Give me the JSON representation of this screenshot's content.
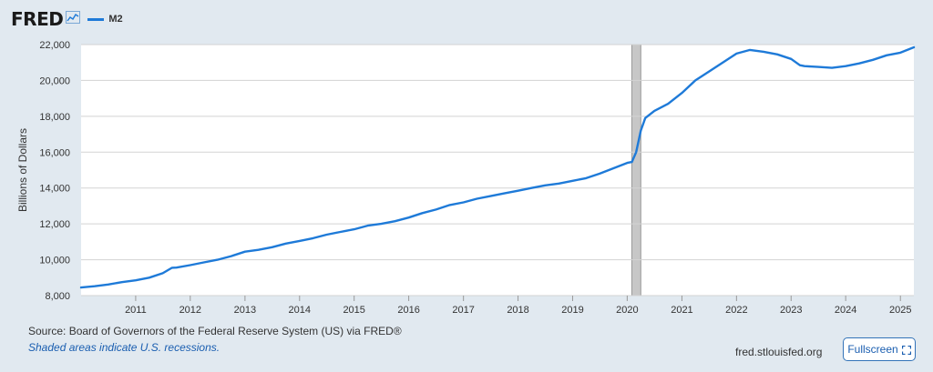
{
  "header": {
    "logo": "FRED",
    "logo_icon": "line-graph-icon",
    "legend_label": "M2"
  },
  "colors": {
    "series": "#1e7ad8",
    "recession": "#c7c7c7",
    "grid": "#d3d3d3",
    "background": "#e1e9f0",
    "plot_bg": "#ffffff"
  },
  "footer": {
    "source": "Source: Board of Governors of the Federal Reserve System (US) via FRED®",
    "note": "Shaded areas indicate U.S. recessions.",
    "site": "fred.stlouisfed.org",
    "fullscreen_label": "Fullscreen",
    "fullscreen_icon": "fullscreen-corners-icon"
  },
  "chart_data": {
    "type": "line",
    "title": "",
    "xlabel": "",
    "ylabel": "Billions of Dollars",
    "xlim": [
      "2010-01-01",
      "2025-04-01"
    ],
    "ylim": [
      8000,
      22000
    ],
    "yticks": [
      8000,
      10000,
      12000,
      14000,
      16000,
      18000,
      20000,
      22000
    ],
    "ytick_labels": [
      "8,000",
      "10,000",
      "12,000",
      "14,000",
      "16,000",
      "18,000",
      "20,000",
      "22,000"
    ],
    "xticks": [
      "2011-01-01",
      "2012-01-01",
      "2013-01-01",
      "2014-01-01",
      "2015-01-01",
      "2016-01-01",
      "2017-01-01",
      "2018-01-01",
      "2019-01-01",
      "2020-01-01",
      "2021-01-01",
      "2022-01-01",
      "2023-01-01",
      "2024-01-01",
      "2025-01-01"
    ],
    "xtick_labels": [
      "2011",
      "2012",
      "2013",
      "2014",
      "2015",
      "2016",
      "2017",
      "2018",
      "2019",
      "2020",
      "2021",
      "2022",
      "2023",
      "2024",
      "2025"
    ],
    "grid": "horizontal",
    "legend_position": "top-left",
    "recessions": [
      {
        "start": "2020-02-01",
        "end": "2020-04-01"
      }
    ],
    "series": [
      {
        "name": "M2",
        "points": [
          [
            "2010-01-01",
            8450
          ],
          [
            "2010-04-01",
            8520
          ],
          [
            "2010-07-01",
            8620
          ],
          [
            "2010-10-01",
            8750
          ],
          [
            "2011-01-01",
            8850
          ],
          [
            "2011-04-01",
            9000
          ],
          [
            "2011-07-01",
            9250
          ],
          [
            "2011-09-01",
            9550
          ],
          [
            "2011-10-01",
            9560
          ],
          [
            "2012-01-01",
            9700
          ],
          [
            "2012-04-01",
            9850
          ],
          [
            "2012-07-01",
            10000
          ],
          [
            "2012-10-01",
            10200
          ],
          [
            "2013-01-01",
            10450
          ],
          [
            "2013-04-01",
            10550
          ],
          [
            "2013-07-01",
            10700
          ],
          [
            "2013-10-01",
            10900
          ],
          [
            "2014-01-01",
            11050
          ],
          [
            "2014-04-01",
            11200
          ],
          [
            "2014-07-01",
            11400
          ],
          [
            "2014-10-01",
            11550
          ],
          [
            "2015-01-01",
            11700
          ],
          [
            "2015-04-01",
            11900
          ],
          [
            "2015-07-01",
            12000
          ],
          [
            "2015-10-01",
            12150
          ],
          [
            "2016-01-01",
            12350
          ],
          [
            "2016-04-01",
            12600
          ],
          [
            "2016-07-01",
            12800
          ],
          [
            "2016-10-01",
            13050
          ],
          [
            "2017-01-01",
            13200
          ],
          [
            "2017-04-01",
            13400
          ],
          [
            "2017-07-01",
            13550
          ],
          [
            "2017-10-01",
            13700
          ],
          [
            "2018-01-01",
            13850
          ],
          [
            "2018-04-01",
            14000
          ],
          [
            "2018-07-01",
            14150
          ],
          [
            "2018-10-01",
            14250
          ],
          [
            "2019-01-01",
            14400
          ],
          [
            "2019-04-01",
            14550
          ],
          [
            "2019-07-01",
            14800
          ],
          [
            "2019-10-01",
            15100
          ],
          [
            "2020-01-01",
            15400
          ],
          [
            "2020-02-01",
            15450
          ],
          [
            "2020-03-01",
            16000
          ],
          [
            "2020-04-01",
            17200
          ],
          [
            "2020-05-01",
            17900
          ],
          [
            "2020-07-01",
            18300
          ],
          [
            "2020-10-01",
            18700
          ],
          [
            "2021-01-01",
            19300
          ],
          [
            "2021-04-01",
            20000
          ],
          [
            "2021-07-01",
            20500
          ],
          [
            "2021-10-01",
            21000
          ],
          [
            "2022-01-01",
            21500
          ],
          [
            "2022-04-01",
            21700
          ],
          [
            "2022-07-01",
            21600
          ],
          [
            "2022-10-01",
            21450
          ],
          [
            "2023-01-01",
            21200
          ],
          [
            "2023-03-01",
            20850
          ],
          [
            "2023-04-01",
            20800
          ],
          [
            "2023-07-01",
            20750
          ],
          [
            "2023-10-01",
            20700
          ],
          [
            "2024-01-01",
            20800
          ],
          [
            "2024-04-01",
            20950
          ],
          [
            "2024-07-01",
            21150
          ],
          [
            "2024-10-01",
            21400
          ],
          [
            "2025-01-01",
            21550
          ],
          [
            "2025-04-01",
            21850
          ]
        ]
      }
    ]
  }
}
